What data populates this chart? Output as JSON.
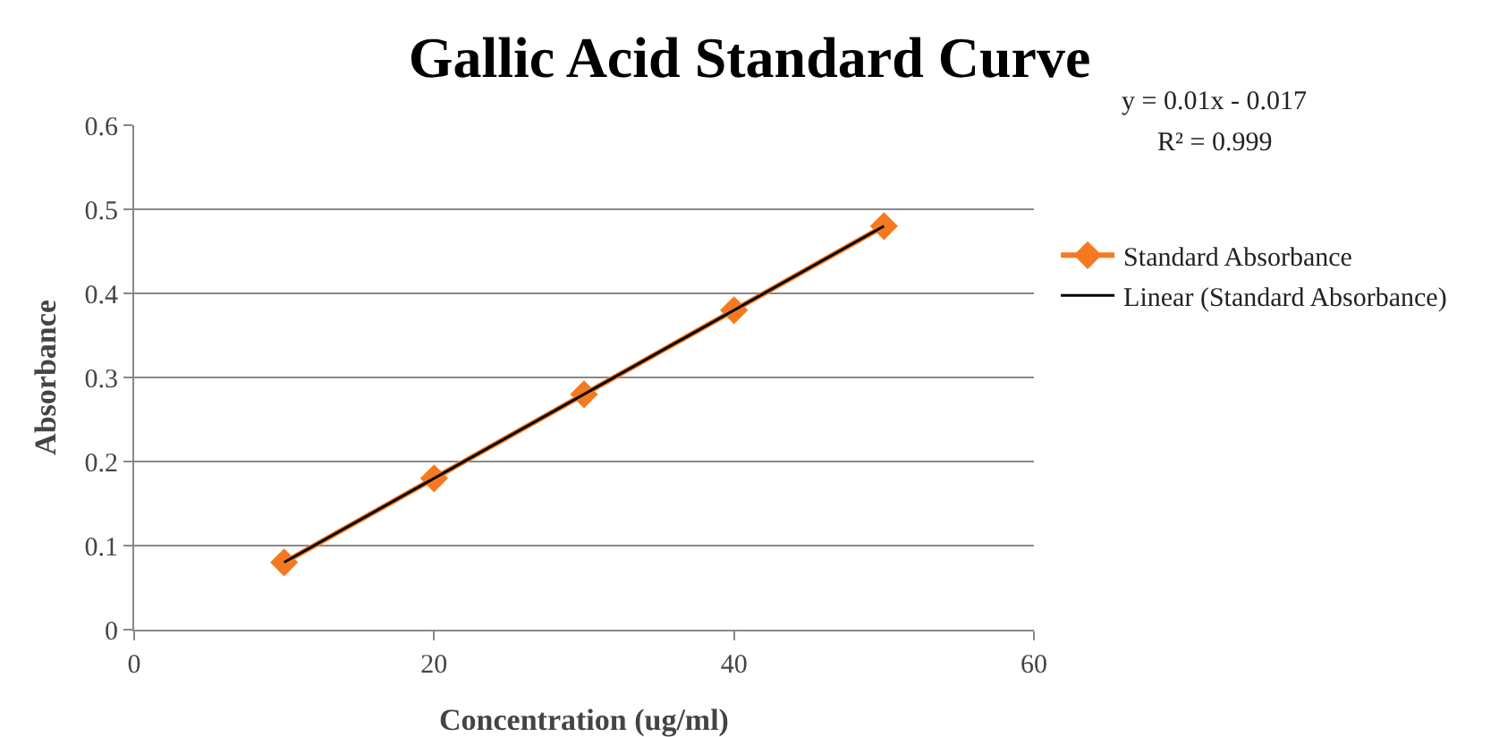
{
  "chart_data": {
    "type": "line",
    "title": "Gallic Acid Standard Curve",
    "xlabel": "Concentration (ug/ml)",
    "ylabel": "Absorbance",
    "x": [
      10,
      20,
      30,
      40,
      50
    ],
    "series": [
      {
        "name": "Standard Absorbance",
        "color": "#f47920",
        "values": [
          0.08,
          0.18,
          0.28,
          0.38,
          0.48
        ]
      },
      {
        "name": "Linear (Standard Absorbance)",
        "type": "line",
        "marker": "none",
        "color": "#000000",
        "x": [
          10,
          50
        ],
        "values": [
          0.08,
          0.48
        ]
      }
    ],
    "annotations": [
      "y = 0.01x - 0.017",
      "R² = 0.999"
    ],
    "xlim": [
      0,
      60
    ],
    "xticks": [
      0,
      20,
      40,
      60
    ],
    "ylim": [
      0,
      0.6
    ],
    "yticks": [
      0,
      0.1,
      0.2,
      0.3,
      0.4,
      0.5,
      0.6
    ],
    "grid": "y",
    "legend": "right",
    "marker": "diamond",
    "line_style": "solid"
  }
}
